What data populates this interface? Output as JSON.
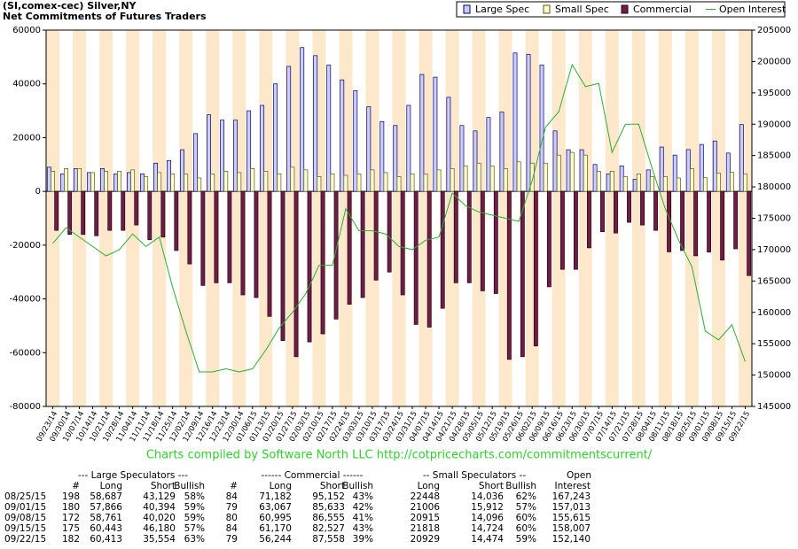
{
  "chart_data": {
    "type": "bar",
    "title": "(SI,comex-cec) Silver,NY",
    "subtitle": "Net Commitments of Futures Traders",
    "credit": "Charts compiled by Software North LLC  http://cotpricecharts.com/commitmentscurrent/",
    "legend": "top-right",
    "grid": false,
    "categories": [
      "09/23/14",
      "09/30/14",
      "10/07/14",
      "10/14/14",
      "10/21/14",
      "10/28/14",
      "11/04/14",
      "11/11/14",
      "11/18/14",
      "11/25/14",
      "12/02/14",
      "12/09/14",
      "12/16/14",
      "12/23/14",
      "12/30/14",
      "01/06/15",
      "01/13/15",
      "01/20/15",
      "01/27/15",
      "02/03/15",
      "02/10/15",
      "02/17/15",
      "02/24/15",
      "03/03/15",
      "03/10/15",
      "03/17/15",
      "03/24/15",
      "03/31/15",
      "04/07/15",
      "04/14/15",
      "04/21/15",
      "04/28/15",
      "05/05/15",
      "05/12/15",
      "05/19/15",
      "05/26/15",
      "06/02/15",
      "06/09/15",
      "06/16/15",
      "06/23/15",
      "06/30/15",
      "07/07/15",
      "07/14/15",
      "07/21/15",
      "07/28/15",
      "08/04/15",
      "08/11/15",
      "08/18/15",
      "08/25/15",
      "09/01/15",
      "09/08/15",
      "09/15/15",
      "09/22/15"
    ],
    "series": [
      {
        "name": "Large Spec",
        "color": "#ccccff",
        "type": "bar",
        "values": [
          9000,
          6500,
          8500,
          7000,
          8500,
          6500,
          7000,
          6500,
          10500,
          11500,
          15500,
          21500,
          28500,
          26500,
          26500,
          30000,
          32000,
          40000,
          46500,
          53500,
          50500,
          47000,
          41500,
          37500,
          31500,
          26000,
          24500,
          32000,
          43500,
          42500,
          35000,
          24500,
          22500,
          27500,
          29500,
          51500,
          51000,
          47000,
          22500,
          15500,
          15500,
          10000,
          6500,
          9500,
          4500,
          8000,
          16500,
          13500,
          15558,
          17472,
          18741,
          14263,
          24858
        ]
      },
      {
        "name": "Small Spec",
        "color": "#ffffcc",
        "type": "bar",
        "values": [
          7500,
          8500,
          8500,
          7000,
          7500,
          7500,
          8000,
          5500,
          7000,
          6500,
          6500,
          5000,
          6500,
          7500,
          7000,
          8500,
          7500,
          6500,
          9000,
          8000,
          5500,
          6500,
          6000,
          6500,
          8000,
          7000,
          5500,
          6500,
          6500,
          8000,
          8500,
          9500,
          10500,
          9500,
          8500,
          11000,
          10500,
          10500,
          13500,
          14500,
          13500,
          7500,
          7500,
          5500,
          6500,
          5500,
          5500,
          5000,
          8412,
          5094,
          6819,
          7094,
          6455
        ]
      },
      {
        "name": "Commercial",
        "color": "#6b1f45",
        "type": "bar",
        "values": [
          -14500,
          -16000,
          -16000,
          -16500,
          -14500,
          -14500,
          -12500,
          -18000,
          -17000,
          -22000,
          -27000,
          -35000,
          -34000,
          -34000,
          -38500,
          -39500,
          -46500,
          -55500,
          -61500,
          -56000,
          -53000,
          -47500,
          -42000,
          -39500,
          -33000,
          -30000,
          -38500,
          -49500,
          -50500,
          -43500,
          -34000,
          -34000,
          -37000,
          -38000,
          -62500,
          -61500,
          -57500,
          -35500,
          -29000,
          -29000,
          -21000,
          -15000,
          -15500,
          -11500,
          -12500,
          -14500,
          -22500,
          -22000,
          -23970,
          -22566,
          -25560,
          -21357,
          -31314
        ]
      },
      {
        "name": "Open Interest",
        "color": "#33aa33",
        "type": "line",
        "axis": "y2",
        "values": [
          171000,
          173500,
          172000,
          170500,
          169000,
          170000,
          172500,
          170500,
          172000,
          164000,
          157000,
          150500,
          150500,
          151000,
          150500,
          151000,
          154000,
          157500,
          160000,
          163000,
          167500,
          167500,
          176500,
          173000,
          173000,
          172500,
          170500,
          170000,
          171500,
          172000,
          179000,
          177000,
          176000,
          175500,
          175000,
          174500,
          181000,
          189500,
          192000,
          199500,
          196000,
          196500,
          185500,
          190000,
          190000,
          183000,
          176500,
          171500,
          167243,
          157013,
          155615,
          158007,
          152140
        ]
      }
    ],
    "ylim": [
      -80000,
      60000
    ],
    "yticks": [
      -80000,
      -60000,
      -40000,
      -20000,
      0,
      20000,
      40000,
      60000
    ],
    "y2lim": [
      145000,
      205000
    ],
    "y2ticks": [
      145000,
      150000,
      155000,
      160000,
      165000,
      170000,
      175000,
      180000,
      185000,
      190000,
      195000,
      200000,
      205000
    ]
  },
  "table": {
    "groups": [
      "--- Large Speculators ---",
      "------ Commercial ------",
      "-- Small Speculators --",
      "Open"
    ],
    "columns": [
      "#",
      "Long",
      "Short",
      "Bullish",
      "#",
      "Long",
      "Short",
      "Bullish",
      "Long",
      "Short",
      "Bullish",
      "Interest"
    ],
    "rows": [
      [
        "08/25/15",
        "198",
        "58,687",
        "43,129",
        "58%",
        "84",
        "71,182",
        "95,152",
        "43%",
        "22448",
        "14,036",
        "62%",
        "167,243"
      ],
      [
        "09/01/15",
        "180",
        "57,866",
        "40,394",
        "59%",
        "79",
        "63,067",
        "85,633",
        "42%",
        "21006",
        "15,912",
        "57%",
        "157,013"
      ],
      [
        "09/08/15",
        "172",
        "58,761",
        "40,020",
        "59%",
        "80",
        "60,995",
        "86,555",
        "41%",
        "20915",
        "14,096",
        "60%",
        "155,615"
      ],
      [
        "09/15/15",
        "175",
        "60,443",
        "46,180",
        "57%",
        "84",
        "61,170",
        "82,527",
        "43%",
        "21818",
        "14,724",
        "60%",
        "158,007"
      ],
      [
        "09/22/15",
        "182",
        "60,413",
        "35,554",
        "63%",
        "79",
        "56,244",
        "87,558",
        "39%",
        "20929",
        "14,474",
        "59%",
        "152,140"
      ]
    ]
  }
}
